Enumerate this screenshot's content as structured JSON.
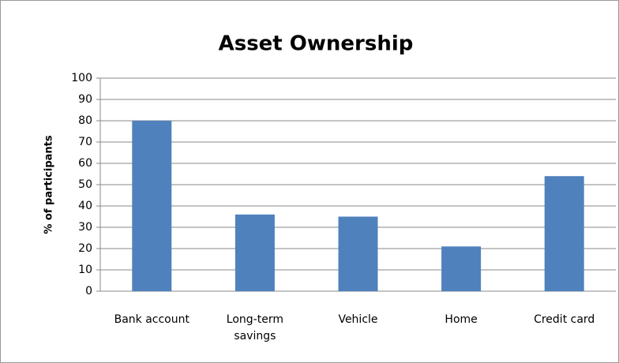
{
  "chart_data": {
    "type": "bar",
    "title": "Asset Ownership",
    "y_label": "% of participants",
    "categories": [
      "Bank account",
      "Long-term savings",
      "Vehicle",
      "Home",
      "Credit card"
    ],
    "values": [
      80,
      36,
      35,
      21,
      54
    ],
    "color": "#4f81bd",
    "ylim": [
      0,
      100
    ],
    "yticks": [
      0,
      10,
      20,
      30,
      40,
      50,
      60,
      70,
      80,
      90,
      100
    ],
    "grid": true
  }
}
